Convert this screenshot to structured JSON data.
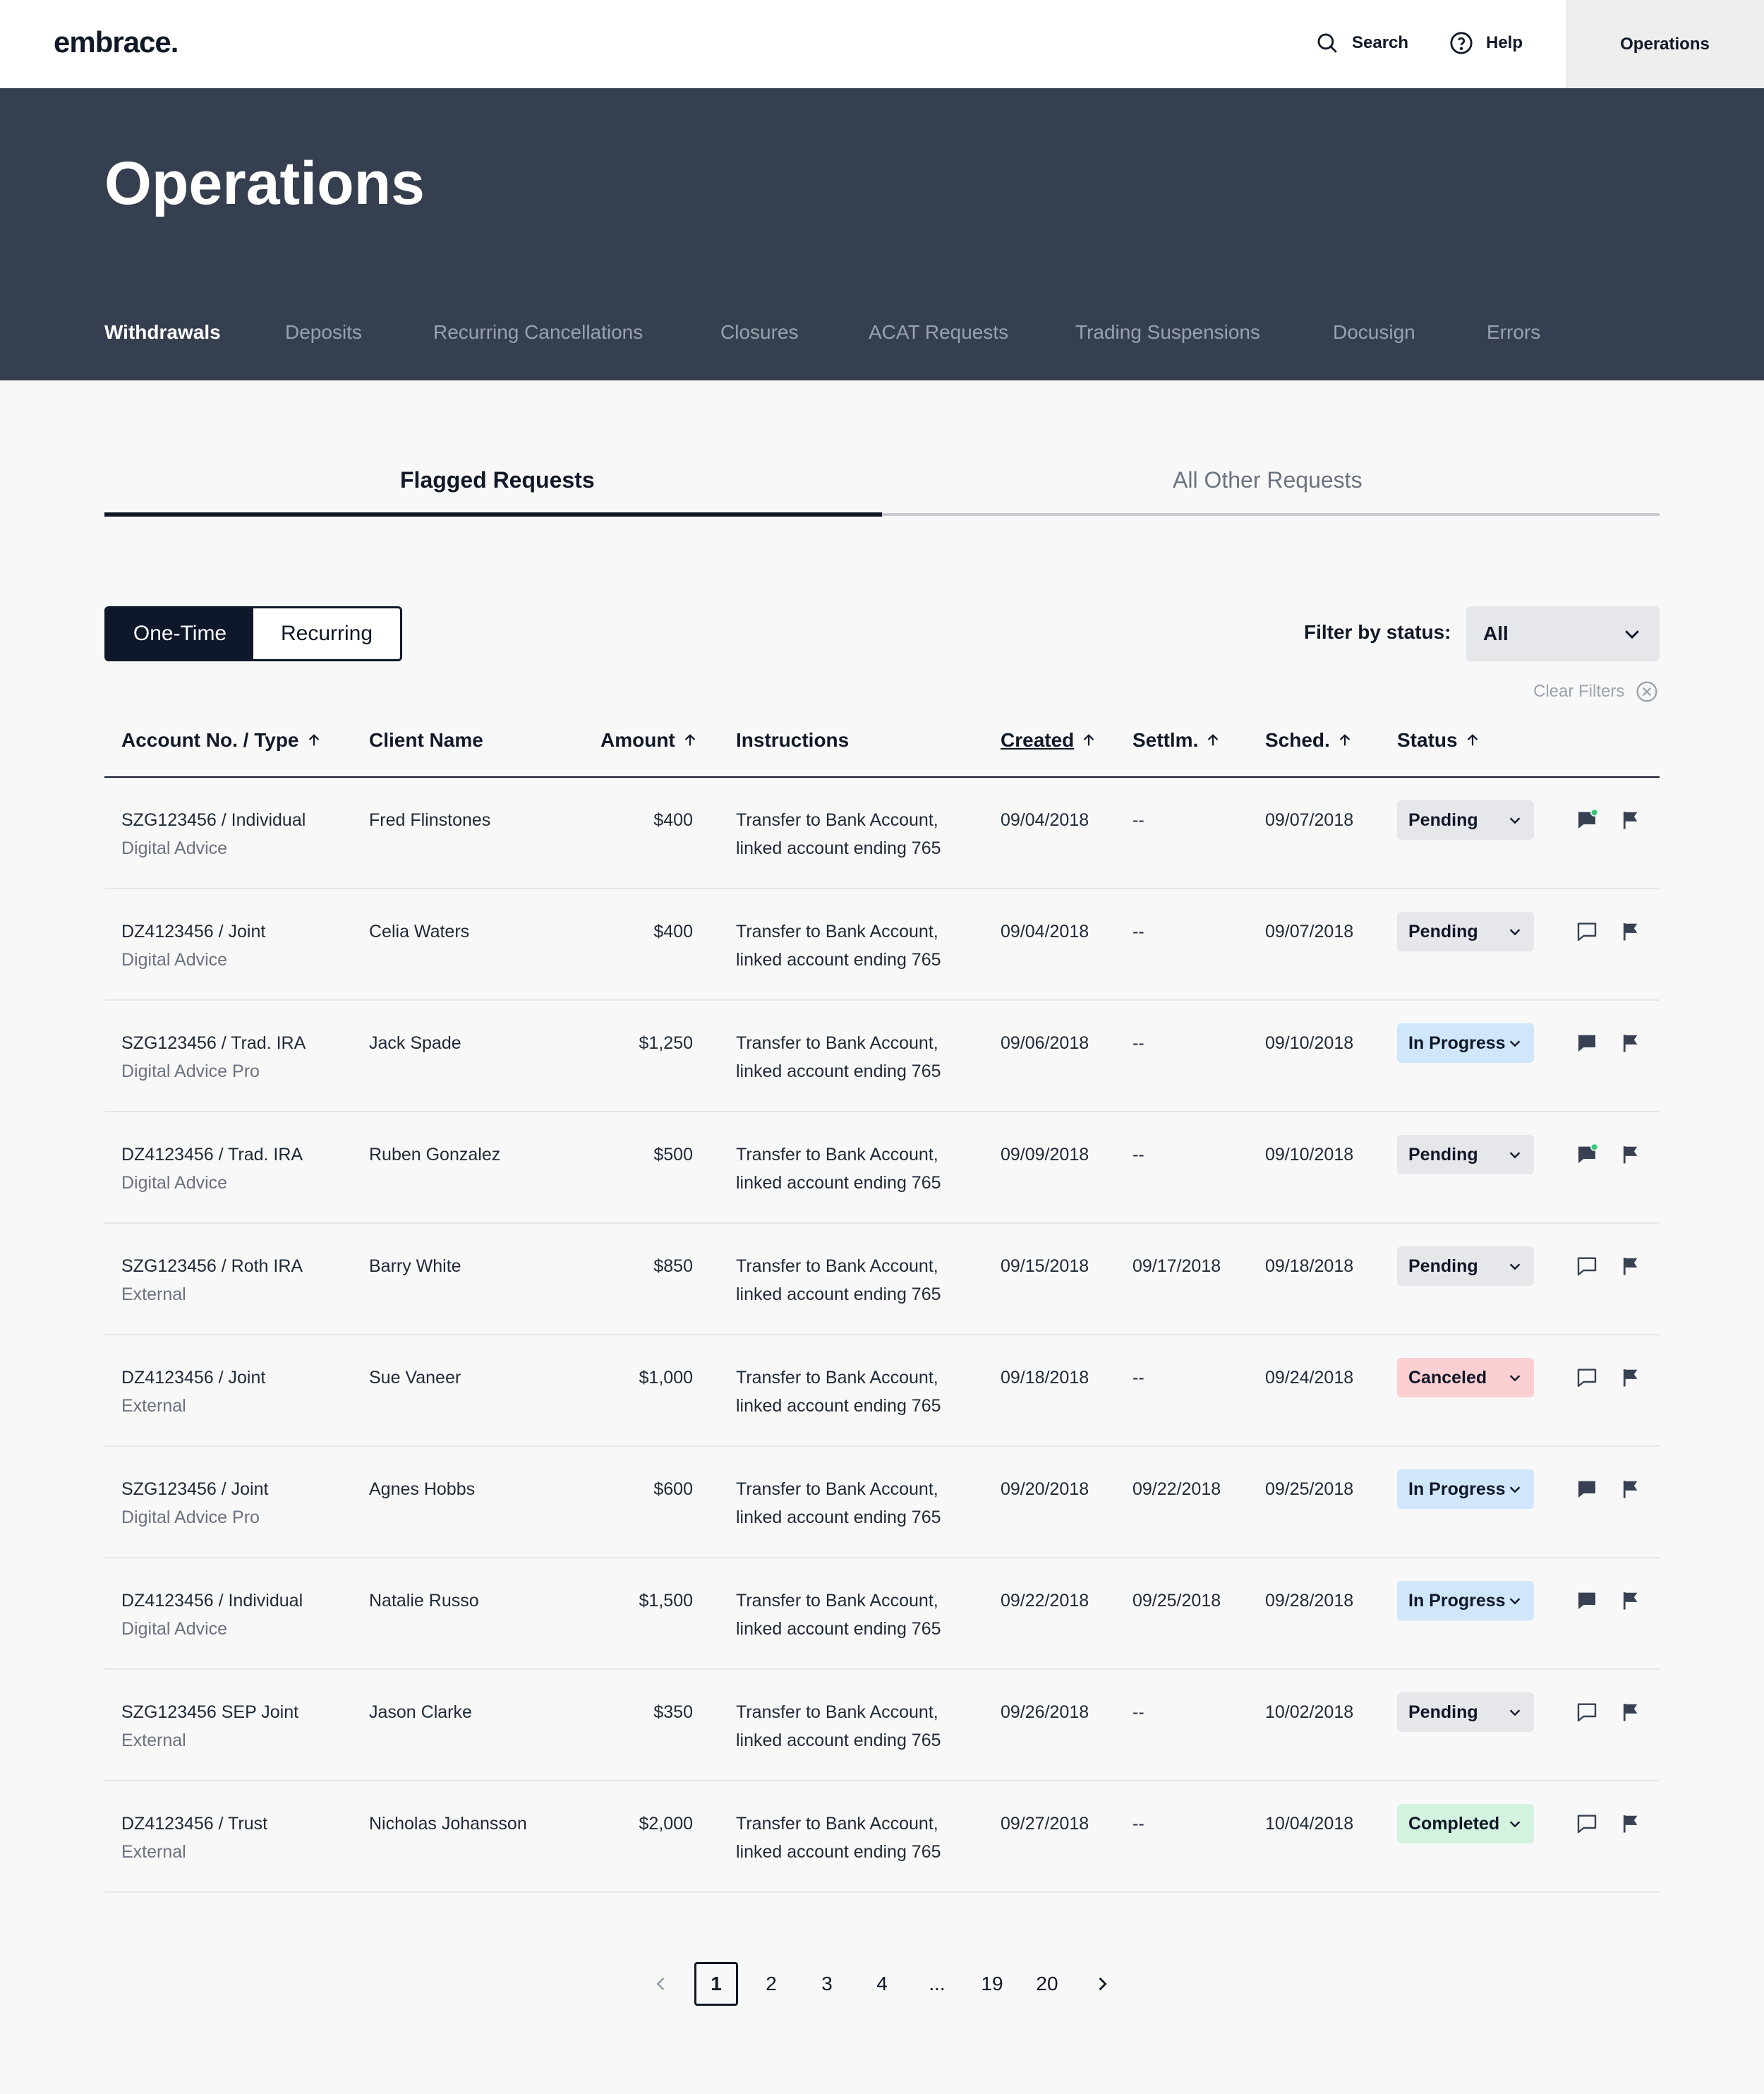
{
  "header": {
    "logo": "embrace.",
    "search_label": "Search",
    "help_label": "Help",
    "operations_label": "Operations"
  },
  "hero": {
    "title": "Operations",
    "tabs": [
      "Withdrawals",
      "Deposits",
      "Recurring Cancellations",
      "Closures",
      "ACAT Requests",
      "Trading Suspensions",
      "Docusign",
      "Errors"
    ],
    "active_tab": "Withdrawals"
  },
  "request_tabs": {
    "flagged": "Flagged Requests",
    "other": "All Other Requests",
    "active": "Flagged Requests"
  },
  "toggle": {
    "one_time": "One-Time",
    "recurring": "Recurring",
    "selected": "One-Time"
  },
  "filter": {
    "label": "Filter by status:",
    "value": "All",
    "clear_label": "Clear Filters"
  },
  "table": {
    "headers": {
      "account": "Account No. / Type",
      "client": "Client Name",
      "amount": "Amount",
      "instructions": "Instructions",
      "created": "Created",
      "settlement": "Settlm.",
      "scheduled": "Sched.",
      "status": "Status"
    },
    "rows": [
      {
        "account": "SZG123456 / Individual",
        "type": "Digital Advice",
        "client": "Fred Flinstones",
        "amount": "$400",
        "instr1": "Transfer to Bank Account,",
        "instr2": "linked account ending 765",
        "created": "09/04/2018",
        "settl": "--",
        "sched": "09/07/2018",
        "status": "Pending",
        "comment": "filled-new",
        "flag": "flag"
      },
      {
        "account": "DZ4123456 / Joint",
        "type": "Digital Advice",
        "client": "Celia Waters",
        "amount": "$400",
        "instr1": "Transfer to Bank Account,",
        "instr2": "linked account ending 765",
        "created": "09/04/2018",
        "settl": "--",
        "sched": "09/07/2018",
        "status": "Pending",
        "comment": "outline",
        "flag": "flag"
      },
      {
        "account": "SZG123456 / Trad. IRA",
        "type": "Digital Advice Pro",
        "client": "Jack Spade",
        "amount": "$1,250",
        "instr1": "Transfer to Bank Account,",
        "instr2": "linked account ending 765",
        "created": "09/06/2018",
        "settl": "--",
        "sched": "09/10/2018",
        "status": "In Progress",
        "comment": "filled",
        "flag": "flag"
      },
      {
        "account": "DZ4123456 / Trad. IRA",
        "type": "Digital Advice",
        "client": "Ruben Gonzalez",
        "amount": "$500",
        "instr1": "Transfer to Bank Account,",
        "instr2": "linked account ending 765",
        "created": "09/09/2018",
        "settl": "--",
        "sched": "09/10/2018",
        "status": "Pending",
        "comment": "filled-new",
        "flag": "flag"
      },
      {
        "account": "SZG123456 / Roth IRA",
        "type": "External",
        "client": "Barry White",
        "amount": "$850",
        "instr1": "Transfer to Bank Account,",
        "instr2": "linked account ending 765",
        "created": "09/15/2018",
        "settl": "09/17/2018",
        "sched": "09/18/2018",
        "status": "Pending",
        "comment": "outline",
        "flag": "flag"
      },
      {
        "account": "DZ4123456 / Joint",
        "type": "External",
        "client": "Sue Vaneer",
        "amount": "$1,000",
        "instr1": "Transfer to Bank Account,",
        "instr2": "linked account ending 765",
        "created": "09/18/2018",
        "settl": "--",
        "sched": "09/24/2018",
        "status": "Canceled",
        "comment": "outline",
        "flag": "flag"
      },
      {
        "account": "SZG123456 / Joint",
        "type": "Digital Advice Pro",
        "client": "Agnes Hobbs",
        "amount": "$600",
        "instr1": "Transfer to Bank Account,",
        "instr2": "linked account ending 765",
        "created": "09/20/2018",
        "settl": "09/22/2018",
        "sched": "09/25/2018",
        "status": "In Progress",
        "comment": "filled",
        "flag": "flag"
      },
      {
        "account": "DZ4123456 / Individual",
        "type": "Digital Advice",
        "client": "Natalie Russo",
        "amount": "$1,500",
        "instr1": "Transfer to Bank Account,",
        "instr2": "linked account ending 765",
        "created": "09/22/2018",
        "settl": "09/25/2018",
        "sched": "09/28/2018",
        "status": "In Progress",
        "comment": "filled",
        "flag": "flag"
      },
      {
        "account": "SZG123456 SEP Joint",
        "type": "External",
        "client": "Jason Clarke",
        "amount": "$350",
        "instr1": "Transfer to Bank Account,",
        "instr2": "linked account ending 765",
        "created": "09/26/2018",
        "settl": "--",
        "sched": "10/02/2018",
        "status": "Pending",
        "comment": "outline",
        "flag": "flag"
      },
      {
        "account": "DZ4123456 / Trust",
        "type": "External",
        "client": "Nicholas Johansson",
        "amount": "$2,000",
        "instr1": "Transfer to Bank Account,",
        "instr2": "linked account ending 765",
        "created": "09/27/2018",
        "settl": "--",
        "sched": "10/04/2018",
        "status": "Completed",
        "comment": "outline",
        "flag": "flag"
      }
    ]
  },
  "status_colors": {
    "Pending": "#e5e7eb",
    "In Progress": "#cfe6fb",
    "Canceled": "#fccfd3",
    "Completed": "#d3f3e0"
  },
  "accent": {
    "new_comment_dot": "#34c77b"
  },
  "pagination": {
    "pages": [
      "1",
      "2",
      "3",
      "4",
      "...",
      "19",
      "20"
    ],
    "current": "1",
    "prev_icon": "chevron-left-icon",
    "next_icon": "chevron-right-icon"
  }
}
